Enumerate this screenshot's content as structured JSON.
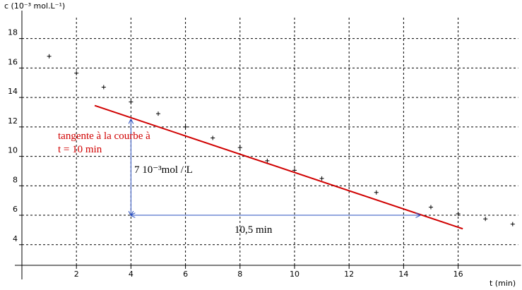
{
  "chart_data": {
    "type": "scatter",
    "y_label": "c (10⁻³ mol.L⁻¹)",
    "x_label": "t (min)",
    "x": [
      1,
      2,
      3,
      4,
      5,
      6,
      7,
      8,
      9,
      10,
      11,
      13,
      15,
      16,
      17,
      18
    ],
    "values": [
      16.8,
      15.65,
      14.7,
      13.7,
      12.9,
      12.0,
      11.25,
      10.6,
      9.7,
      9.05,
      8.5,
      7.55,
      6.55,
      6.1,
      5.75,
      5.4
    ],
    "color": "#000000",
    "xlim": [
      0,
      18.2
    ],
    "ylim": [
      2.6,
      19.9
    ],
    "xticks": [
      2,
      4,
      6,
      8,
      10,
      12,
      14,
      16
    ],
    "yticks": [
      4,
      6,
      8,
      10,
      12,
      14,
      16,
      18
    ],
    "grid": true,
    "lines": [
      {
        "color": "#d00000",
        "x": [
          2.67,
          16.17
        ],
        "values": [
          13.45,
          5.08
        ]
      }
    ],
    "arrows": [
      {
        "color": "#2a4fbf",
        "x": [
          4,
          4
        ],
        "values": [
          6,
          12.5
        ]
      },
      {
        "color": "#2a4fbf",
        "x": [
          4,
          14.6
        ],
        "values": [
          6,
          6
        ]
      }
    ],
    "annotations": [
      {
        "text": "tangente à la courbe à",
        "color": "#d00000"
      },
      {
        "text": "t = 10 min",
        "color": "#d00000"
      },
      {
        "text": "7 10⁻³mol / L",
        "color": "#000000"
      },
      {
        "text": "10,5 min",
        "color": "#000000"
      }
    ]
  }
}
